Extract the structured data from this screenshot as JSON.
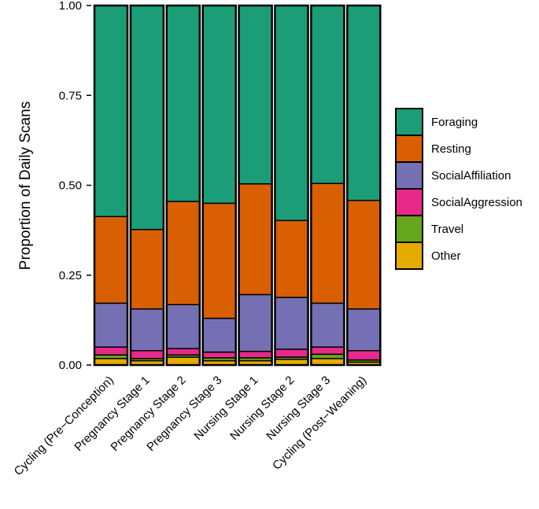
{
  "chart_data": {
    "type": "bar",
    "stacked": true,
    "title": "",
    "xlabel": "",
    "ylabel": "Proportion of Daily Scans",
    "ylim": [
      0,
      1
    ],
    "yticks": [
      "0.00",
      "0.25",
      "0.50",
      "0.75",
      "1.00"
    ],
    "categories": [
      "Cycling (Pre−Conception)",
      "Pregnancy Stage 1",
      "Pregnancy Stage 2",
      "Pregnancy Stage 3",
      "Nursing Stage 1",
      "Nursing Stage 2",
      "Nursing Stage 3",
      "Cycling (Post−Weaning)"
    ],
    "series": [
      {
        "name": "Other",
        "color": "#E6AB02",
        "values": [
          0.018,
          0.012,
          0.022,
          0.012,
          0.012,
          0.016,
          0.018,
          0.008
        ]
      },
      {
        "name": "Travel",
        "color": "#66A61E",
        "values": [
          0.01,
          0.006,
          0.006,
          0.008,
          0.008,
          0.006,
          0.012,
          0.006
        ]
      },
      {
        "name": "SocialAggression",
        "color": "#E7298A",
        "values": [
          0.022,
          0.022,
          0.018,
          0.016,
          0.018,
          0.022,
          0.02,
          0.026
        ]
      },
      {
        "name": "SocialAffiliation",
        "color": "#7570B3",
        "values": [
          0.122,
          0.116,
          0.122,
          0.094,
          0.158,
          0.144,
          0.122,
          0.116
        ]
      },
      {
        "name": "Resting",
        "color": "#D95F02",
        "values": [
          0.241,
          0.221,
          0.287,
          0.32,
          0.308,
          0.214,
          0.333,
          0.302
        ]
      },
      {
        "name": "Foraging",
        "color": "#1B9E77",
        "values": [
          0.587,
          0.623,
          0.545,
          0.55,
          0.496,
          0.598,
          0.495,
          0.542
        ]
      }
    ],
    "legend": {
      "position": "right",
      "items": [
        "Foraging",
        "Resting",
        "SocialAffiliation",
        "SocialAggression",
        "Travel",
        "Other"
      ]
    }
  }
}
